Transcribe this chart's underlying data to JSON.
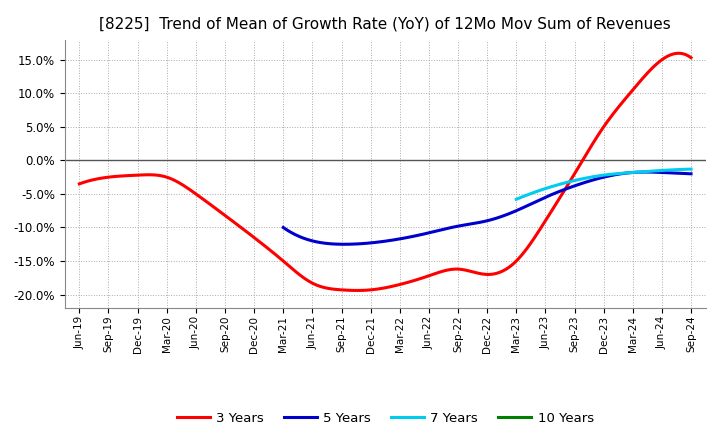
{
  "title": "[8225]  Trend of Mean of Growth Rate (YoY) of 12Mo Mov Sum of Revenues",
  "title_fontsize": 11,
  "background_color": "#ffffff",
  "grid_color": "#aaaaaa",
  "ylim": [
    -0.22,
    0.18
  ],
  "yticks": [
    -0.2,
    -0.15,
    -0.1,
    -0.05,
    0.0,
    0.05,
    0.1,
    0.15
  ],
  "x_labels": [
    "Jun-19",
    "Sep-19",
    "Dec-19",
    "Mar-20",
    "Jun-20",
    "Sep-20",
    "Dec-20",
    "Mar-21",
    "Jun-21",
    "Sep-21",
    "Dec-21",
    "Mar-22",
    "Jun-22",
    "Sep-22",
    "Dec-22",
    "Mar-23",
    "Jun-23",
    "Sep-23",
    "Dec-23",
    "Mar-24",
    "Jun-24",
    "Sep-24"
  ],
  "legend": {
    "labels": [
      "3 Years",
      "5 Years",
      "7 Years",
      "10 Years"
    ],
    "colors": [
      "#ff0000",
      "#0000cd",
      "#00ccee",
      "#008000"
    ],
    "linewidths": [
      2.2,
      2.2,
      2.2,
      2.2
    ]
  },
  "series": {
    "3yr": {
      "color": "#ff0000",
      "linewidth": 2.2,
      "x_indices": [
        0,
        1,
        2,
        3,
        4,
        5,
        6,
        7,
        8,
        9,
        10,
        11,
        12,
        13,
        14,
        15,
        16,
        17,
        18,
        19,
        20,
        21
      ],
      "values": [
        -0.035,
        -0.025,
        -0.022,
        -0.025,
        -0.05,
        -0.082,
        -0.115,
        -0.15,
        -0.183,
        -0.193,
        -0.193,
        -0.185,
        -0.172,
        -0.162,
        -0.17,
        -0.15,
        -0.09,
        -0.02,
        0.05,
        0.105,
        0.15,
        0.153
      ]
    },
    "5yr": {
      "color": "#0000cd",
      "linewidth": 2.2,
      "x_indices": [
        7,
        8,
        9,
        10,
        11,
        12,
        13,
        14,
        15,
        16,
        17,
        18,
        19,
        20,
        21
      ],
      "values": [
        -0.1,
        -0.12,
        -0.125,
        -0.123,
        -0.117,
        -0.108,
        -0.098,
        -0.09,
        -0.075,
        -0.055,
        -0.038,
        -0.025,
        -0.018,
        -0.018,
        -0.02
      ]
    },
    "7yr": {
      "color": "#00ccee",
      "linewidth": 2.2,
      "x_indices": [
        15,
        16,
        17,
        18,
        19,
        20,
        21
      ],
      "values": [
        -0.058,
        -0.042,
        -0.03,
        -0.022,
        -0.018,
        -0.015,
        -0.013
      ]
    },
    "10yr": {
      "color": "#008000",
      "linewidth": 2.2,
      "x_indices": [],
      "values": []
    }
  }
}
